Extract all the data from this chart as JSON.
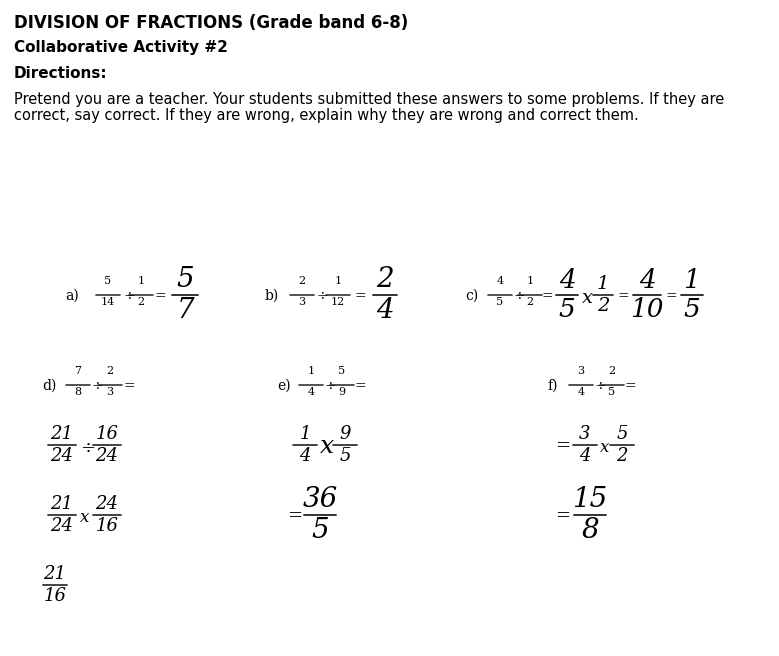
{
  "title": "DIVISION OF FRACTIONS (Grade band 6-8)",
  "subtitle": "Collaborative Activity #2",
  "directions_label": "Directions:",
  "directions_text1": "Pretend you are a teacher. Your students submitted these answers to some problems. If they are",
  "directions_text2": "correct, say correct. If they are wrong, explain why they are wrong and correct them.",
  "bg_color": "#ffffff",
  "text_color": "#000000"
}
